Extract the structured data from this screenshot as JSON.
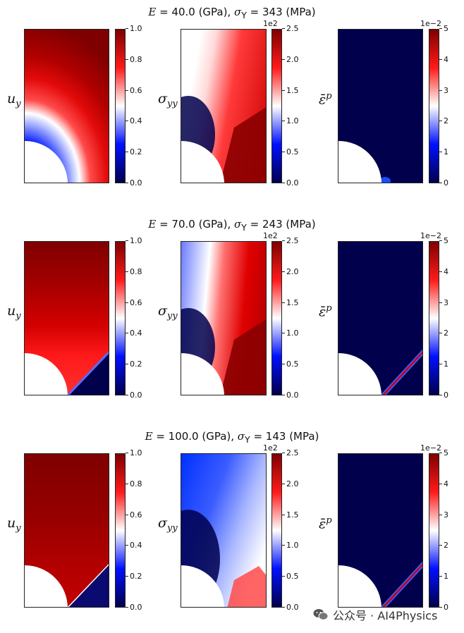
{
  "rows": [
    {
      "title_E": "E",
      "title_eq1": " = 40.0 (GPa), ",
      "title_sig": "σ",
      "title_Y": "Y",
      "title_eq2": " = 343 (MPa)"
    },
    {
      "title_E": "E",
      "title_eq1": " = 70.0 (GPa), ",
      "title_sig": "σ",
      "title_Y": "Y",
      "title_eq2": " = 243 (MPa)"
    },
    {
      "title_E": "E",
      "title_eq1": " = 100.0 (GPa), ",
      "title_sig": "σ",
      "title_Y": "Y",
      "title_eq2": " = 143 (MPa)"
    }
  ],
  "fields": {
    "uy": {
      "label": "u",
      "sub": "y",
      "ticks": [
        "1.0",
        "0.8",
        "0.6",
        "0.4",
        "0.2",
        "0.0"
      ],
      "multiplier": ""
    },
    "syy": {
      "label": "σ",
      "sub": "yy",
      "ticks": [
        "2.5",
        "2.0",
        "1.5",
        "1.0",
        "0.5",
        "0.0"
      ],
      "multiplier": "1e2"
    },
    "ep": {
      "label": "ε̄",
      "sup": "p",
      "ticks": [
        "5",
        "4",
        "3",
        "2",
        "1",
        "0"
      ],
      "multiplier": "1e−2"
    }
  },
  "chart_data": {
    "type": "heatmap",
    "layout": "3 rows × 3 panels",
    "colormap": "seismic",
    "rows": [
      {
        "E_GPa": 40.0,
        "sigmaY_MPa": 343
      },
      {
        "E_GPa": 70.0,
        "sigmaY_MPa": 243
      },
      {
        "E_GPa": 100.0,
        "sigmaY_MPa": 143
      }
    ],
    "panels": [
      {
        "field": "u_y",
        "range": [
          0.0,
          1.0
        ]
      },
      {
        "field": "sigma_yy",
        "range": [
          0.0,
          2.5
        ],
        "scale": "1e2"
      },
      {
        "field": "equivalent plastic strain",
        "range": [
          0,
          5
        ],
        "scale": "1e-2"
      }
    ]
  },
  "watermark": {
    "text": "公众号 · AI4Physics"
  },
  "colors": {
    "dark_red": "#7f0000",
    "red": "#ff1a1a",
    "white": "#ffffff",
    "blue": "#0010ff",
    "navy": "#00004c"
  }
}
